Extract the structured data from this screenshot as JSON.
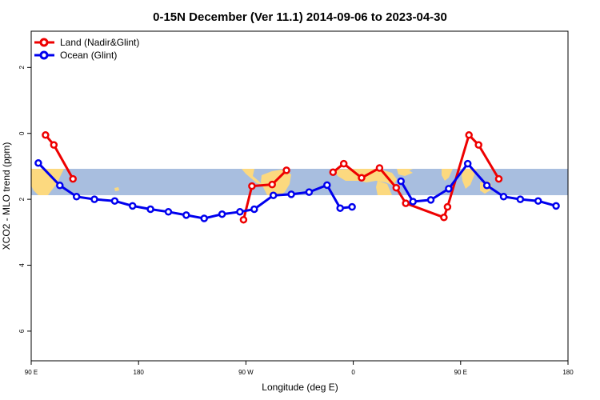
{
  "chart_data": {
    "type": "line",
    "title": "0-15N December (Ver 11.1)   2014-09-06 to 2023-04-30",
    "xlabel": "Longitude (deg E)",
    "ylabel": "XCO2 - MLO trend (ppm)",
    "xlim": [
      90,
      540
    ],
    "ylim": [
      -6.9,
      3.1
    ],
    "x_ticks": [
      {
        "value": 90,
        "label": "90 E"
      },
      {
        "value": 180,
        "label": "180"
      },
      {
        "value": 270,
        "label": "90 W"
      },
      {
        "value": 360,
        "label": "0"
      },
      {
        "value": 450,
        "label": "90 E"
      },
      {
        "value": 540,
        "label": "180"
      }
    ],
    "y_ticks": [
      {
        "value": 2,
        "label": "2"
      },
      {
        "value": 0,
        "label": "0"
      },
      {
        "value": -2,
        "label": "2"
      },
      {
        "value": -4,
        "label": "4"
      },
      {
        "value": -6,
        "label": "6"
      }
    ],
    "legend_position": "top-left",
    "map_band": {
      "lat_range": "0-15N",
      "y_from": -1.9,
      "y_to": -1.08,
      "ocean_color": "#a8bedf",
      "land_color": "#fcd97f"
    },
    "series": [
      {
        "name": "Land (Nadir&Glint)",
        "color": "#ee0000",
        "segments": [
          [
            [
              102,
              -0.05
            ],
            [
              109,
              -0.35
            ],
            [
              125,
              -1.38
            ]
          ],
          [
            [
              268,
              -2.62
            ],
            [
              275,
              -1.6
            ],
            [
              292,
              -1.55
            ],
            [
              304,
              -1.12
            ]
          ],
          [
            [
              343,
              -1.18
            ],
            [
              352,
              -0.92
            ],
            [
              367,
              -1.35
            ],
            [
              382,
              -1.05
            ],
            [
              396,
              -1.65
            ],
            [
              404,
              -2.12
            ],
            [
              436,
              -2.55
            ],
            [
              439,
              -2.23
            ],
            [
              457,
              -0.05
            ],
            [
              465,
              -0.35
            ],
            [
              482,
              -1.38
            ]
          ]
        ]
      },
      {
        "name": "Ocean (Glint)",
        "color": "#0000ee",
        "segments": [
          [
            [
              96,
              -0.9
            ],
            [
              114,
              -1.58
            ],
            [
              128,
              -1.92
            ],
            [
              143,
              -2.0
            ],
            [
              160,
              -2.05
            ],
            [
              175,
              -2.2
            ],
            [
              190,
              -2.3
            ],
            [
              205,
              -2.38
            ],
            [
              220,
              -2.48
            ],
            [
              235,
              -2.58
            ],
            [
              250,
              -2.45
            ],
            [
              265,
              -2.38
            ],
            [
              277,
              -2.3
            ],
            [
              293,
              -1.88
            ],
            [
              308,
              -1.85
            ],
            [
              323,
              -1.78
            ],
            [
              338,
              -1.57
            ],
            [
              349,
              -2.27
            ],
            [
              359,
              -2.23
            ]
          ],
          [
            [
              400,
              -1.45
            ],
            [
              410,
              -2.07
            ],
            [
              425,
              -2.02
            ],
            [
              440,
              -1.68
            ],
            [
              456,
              -0.92
            ],
            [
              472,
              -1.58
            ],
            [
              486,
              -1.92
            ],
            [
              500,
              -2.0
            ],
            [
              515,
              -2.05
            ],
            [
              530,
              -2.2
            ]
          ]
        ]
      }
    ]
  }
}
